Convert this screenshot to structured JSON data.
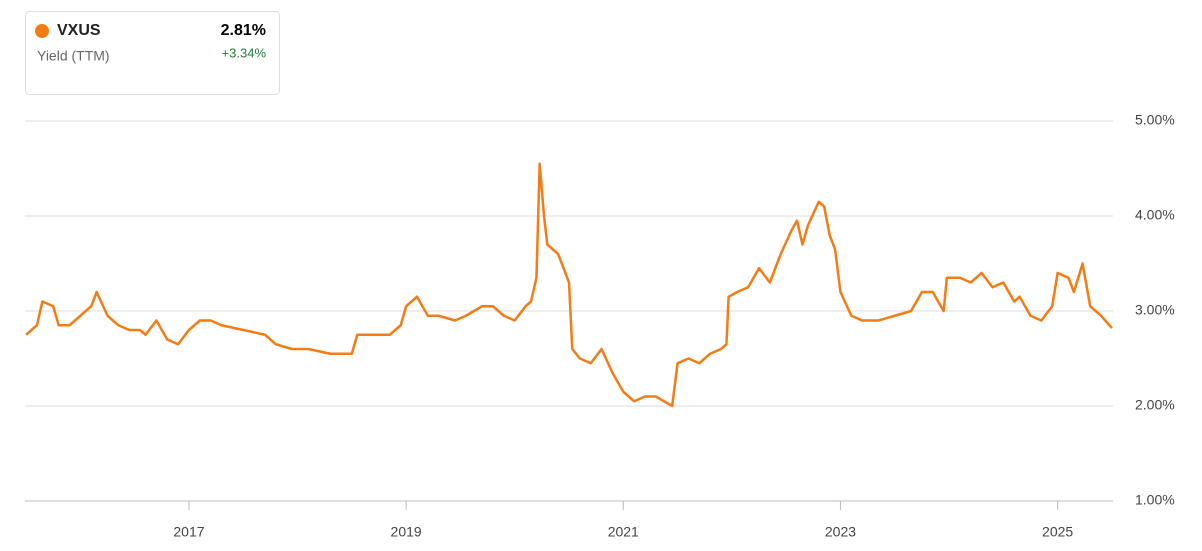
{
  "chart_data": {
    "type": "line",
    "y_label": "Yield (TTM)",
    "legend_value": "2.81%",
    "legend_change": "+3.34%",
    "x": [
      2015.5,
      2015.6,
      2015.65,
      2015.75,
      2015.8,
      2015.9,
      2016.0,
      2016.1,
      2016.15,
      2016.25,
      2016.35,
      2016.45,
      2016.55,
      2016.6,
      2016.7,
      2016.8,
      2016.9,
      2017.0,
      2017.1,
      2017.2,
      2017.3,
      2017.5,
      2017.7,
      2017.8,
      2017.95,
      2018.1,
      2018.3,
      2018.5,
      2018.55,
      2018.7,
      2018.85,
      2018.95,
      2019.0,
      2019.1,
      2019.2,
      2019.3,
      2019.45,
      2019.55,
      2019.7,
      2019.8,
      2019.9,
      2020.0,
      2020.1,
      2020.15,
      2020.2,
      2020.23,
      2020.27,
      2020.3,
      2020.4,
      2020.5,
      2020.53,
      2020.6,
      2020.7,
      2020.8,
      2020.9,
      2021.0,
      2021.1,
      2021.2,
      2021.3,
      2021.45,
      2021.5,
      2021.6,
      2021.7,
      2021.8,
      2021.9,
      2021.95,
      2021.97,
      2022.05,
      2022.15,
      2022.25,
      2022.35,
      2022.45,
      2022.55,
      2022.6,
      2022.65,
      2022.7,
      2022.8,
      2022.85,
      2022.9,
      2022.95,
      2023.0,
      2023.1,
      2023.2,
      2023.35,
      2023.5,
      2023.65,
      2023.75,
      2023.85,
      2023.95,
      2023.98,
      2024.1,
      2024.2,
      2024.3,
      2024.4,
      2024.5,
      2024.6,
      2024.65,
      2024.75,
      2024.85,
      2024.95,
      2025.0,
      2025.1,
      2025.15,
      2025.23,
      2025.3,
      2025.4,
      2025.5
    ],
    "series": [
      {
        "name": "VXUS",
        "color": "#f47c16",
        "values": [
          2.75,
          2.85,
          3.1,
          3.05,
          2.85,
          2.85,
          2.95,
          3.05,
          3.2,
          2.95,
          2.85,
          2.8,
          2.8,
          2.75,
          2.9,
          2.7,
          2.65,
          2.8,
          2.9,
          2.9,
          2.85,
          2.8,
          2.75,
          2.65,
          2.6,
          2.6,
          2.55,
          2.55,
          2.75,
          2.75,
          2.75,
          2.85,
          3.05,
          3.15,
          2.95,
          2.95,
          2.9,
          2.95,
          3.05,
          3.05,
          2.95,
          2.9,
          3.05,
          3.1,
          3.35,
          4.55,
          4.0,
          3.7,
          3.6,
          3.3,
          2.6,
          2.5,
          2.45,
          2.6,
          2.35,
          2.15,
          2.05,
          2.1,
          2.1,
          2.0,
          2.45,
          2.5,
          2.45,
          2.55,
          2.6,
          2.65,
          3.15,
          3.2,
          3.25,
          3.45,
          3.3,
          3.6,
          3.85,
          3.95,
          3.7,
          3.9,
          4.15,
          4.1,
          3.8,
          3.65,
          3.2,
          2.95,
          2.9,
          2.9,
          2.95,
          3.0,
          3.2,
          3.2,
          3.0,
          3.35,
          3.35,
          3.3,
          3.4,
          3.25,
          3.3,
          3.1,
          3.15,
          2.95,
          2.9,
          3.05,
          3.4,
          3.35,
          3.2,
          3.5,
          3.05,
          2.95,
          2.82
        ]
      }
    ],
    "xlim": [
      2015.49,
      2025.51
    ],
    "xticks": [
      2017,
      2019,
      2021,
      2023,
      2025
    ],
    "ylim": [
      1,
      5
    ],
    "yticks": [
      {
        "value": 1,
        "label": "1.00%"
      },
      {
        "value": 2,
        "label": "2.00%"
      },
      {
        "value": 3,
        "label": "3.00%"
      },
      {
        "value": 4,
        "label": "4.00%"
      },
      {
        "value": 5,
        "label": "5.00%"
      }
    ],
    "grid": true
  }
}
